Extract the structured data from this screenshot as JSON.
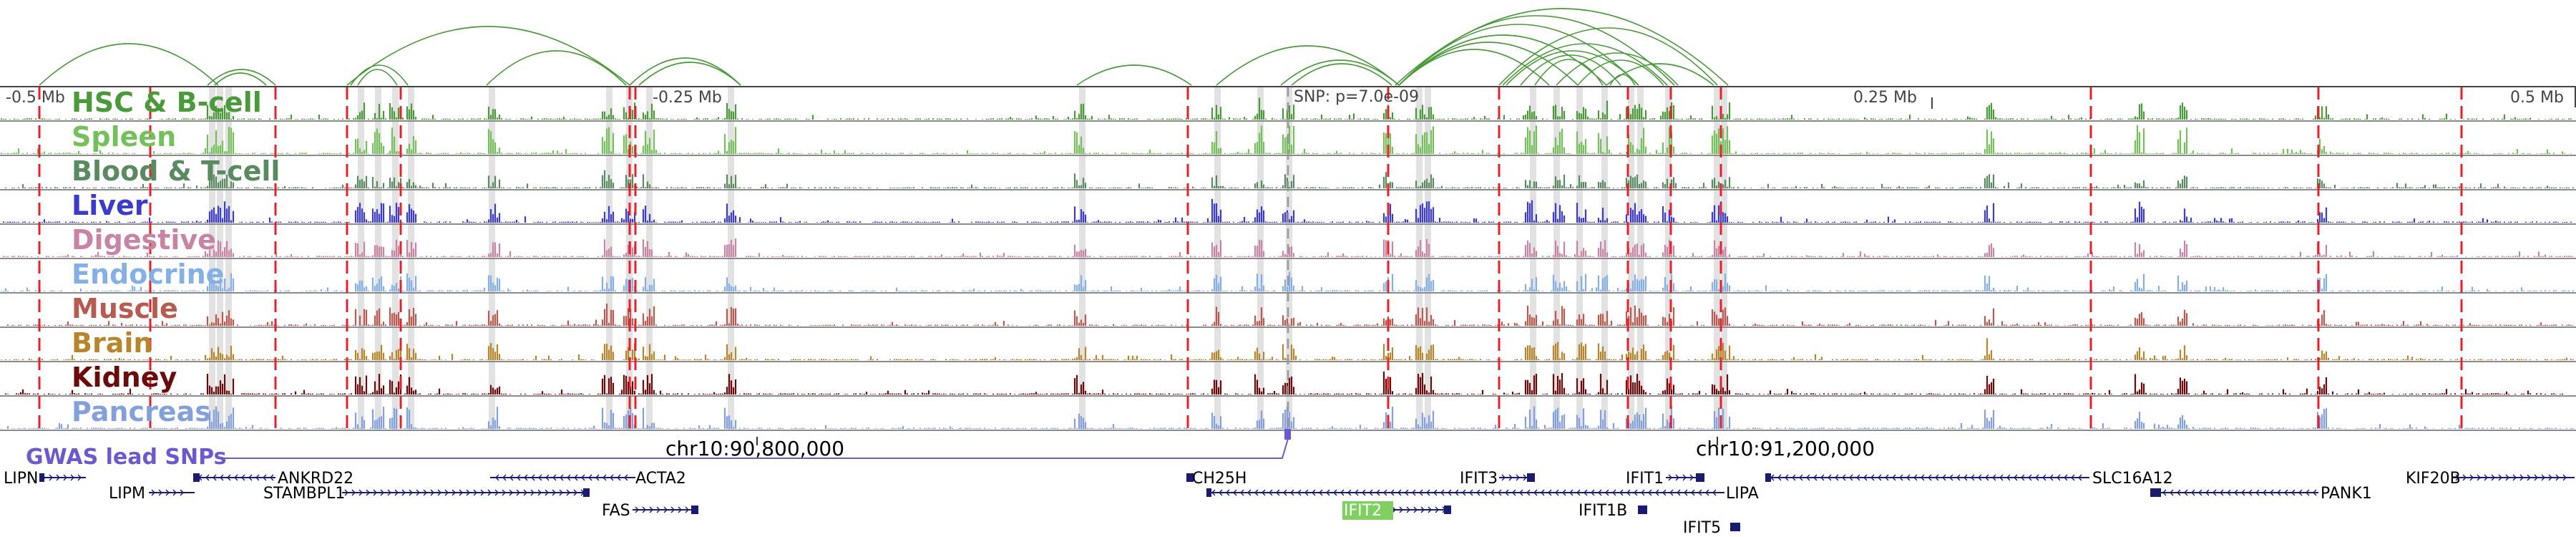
{
  "ruler": {
    "left_label": "-0.5 Mb",
    "mid_left_label": "-0.25 Mb",
    "snp_label": "SNP: p=7.0e-09",
    "mid_right_label": "0.25 Mb",
    "right_label": "0.5 Mb"
  },
  "tracks": [
    {
      "name": "HSC & B-cell",
      "color": "#4a9a3a"
    },
    {
      "name": "Spleen",
      "color": "#74c05a"
    },
    {
      "name": "Blood & T-cell",
      "color": "#5a8a60"
    },
    {
      "name": "Liver",
      "color": "#3c3ccc"
    },
    {
      "name": "Digestive",
      "color": "#c884a4"
    },
    {
      "name": "Endocrine",
      "color": "#84b0e6"
    },
    {
      "name": "Muscle",
      "color": "#b85a50"
    },
    {
      "name": "Brain",
      "color": "#b8862a"
    },
    {
      "name": "Kidney",
      "color": "#6a0a0a"
    },
    {
      "name": "Pancreas",
      "color": "#84a0dc"
    }
  ],
  "gwas": {
    "label": "GWAS lead SNPs",
    "color": "#6a5acd"
  },
  "coordinates": {
    "left": "chr10:90,800,000",
    "right": "chr10:91,200,000"
  },
  "genes": [
    {
      "name": "LIPN",
      "highlight": false
    },
    {
      "name": "LIPM",
      "highlight": false
    },
    {
      "name": "ANKRD22",
      "highlight": false
    },
    {
      "name": "STAMBPL1",
      "highlight": false
    },
    {
      "name": "ACTA2",
      "highlight": false
    },
    {
      "name": "FAS",
      "highlight": false
    },
    {
      "name": "CH25H",
      "highlight": false
    },
    {
      "name": "IFIT2",
      "highlight": true
    },
    {
      "name": "IFIT3",
      "highlight": false
    },
    {
      "name": "IFIT1",
      "highlight": false
    },
    {
      "name": "IFIT1B",
      "highlight": false
    },
    {
      "name": "IFIT5",
      "highlight": false
    },
    {
      "name": "LIPA",
      "highlight": false
    },
    {
      "name": "SLC16A12",
      "highlight": false
    },
    {
      "name": "PANK1",
      "highlight": false
    },
    {
      "name": "KIF20B",
      "highlight": false
    }
  ],
  "colors": {
    "gene_body": "#1a1a6e",
    "loop": "#4a9a3a",
    "variant_line": "#e8202a",
    "highlight_bg": "#7fd060"
  }
}
